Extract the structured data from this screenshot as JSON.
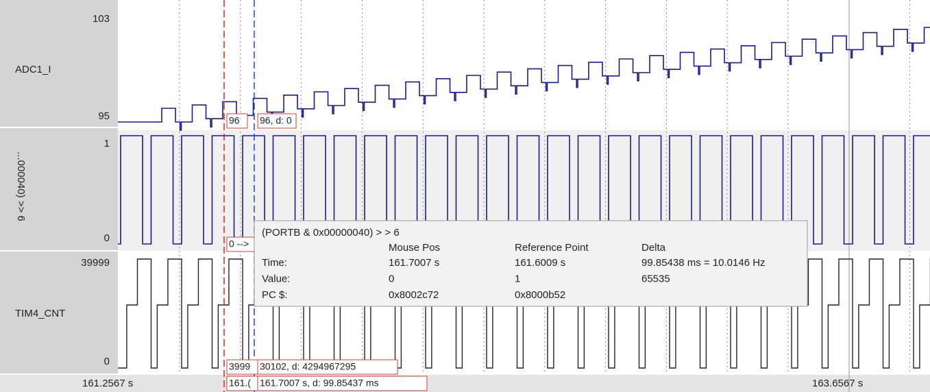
{
  "signals": [
    {
      "name": "ADC1_I",
      "max": "103",
      "min": "95"
    },
    {
      "name": "...000040) >> 6",
      "max": "1",
      "min": "0"
    },
    {
      "name": "TIM4_CNT",
      "max": "39999",
      "min": "0"
    }
  ],
  "time_axis": {
    "start": "161.2567 s",
    "end": "163.6567 s"
  },
  "cursor_labels": {
    "adc_ref": "96",
    "adc_mouse": "96, d: 0",
    "port_ref": "0 -->",
    "tim_ref": "3999",
    "tim_mouse": "30102, d: 4294967295",
    "time_ref": "161.(",
    "time_mouse": "161.7007 s, d: 99.85437 ms"
  },
  "tooltip": {
    "title": "(PORTB & 0x00000040) > > 6",
    "headers": [
      "Mouse Pos",
      "Reference Point",
      "Delta"
    ],
    "rows": [
      {
        "label": "Time:",
        "mouse": "161.7007 s",
        "ref": "161.6009 s",
        "delta": "99.85438 ms = 10.0146 Hz"
      },
      {
        "label": "Value:",
        "mouse": "0",
        "ref": "1",
        "delta": "65535"
      },
      {
        "label": "PC $:",
        "mouse": "0x8002c72",
        "ref": "0x8000b52",
        "delta": ""
      }
    ]
  }
}
